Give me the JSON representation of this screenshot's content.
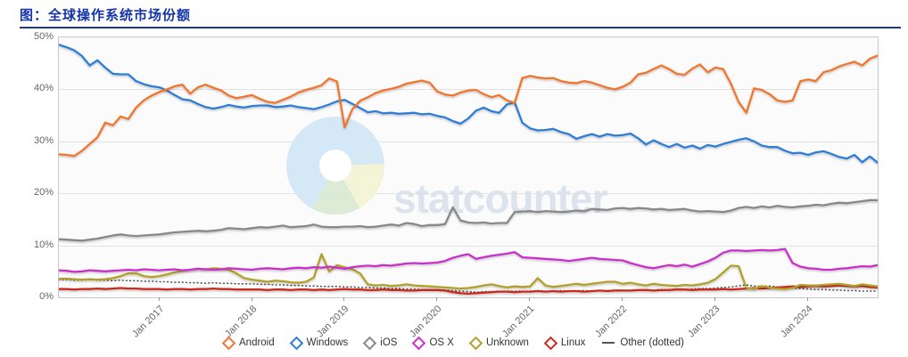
{
  "title": "图：全球操作系统市场份额",
  "watermark": "statcounter",
  "chart_data": {
    "type": "line",
    "title": "",
    "xlabel": "",
    "ylabel": "",
    "ylim": [
      0,
      50
    ],
    "grid": "horizontal",
    "legend_position": "bottom",
    "y_tick_labels": [
      "50%",
      "40%",
      "30%",
      "20%",
      "10%",
      "0%"
    ],
    "x_tick_labels": [
      "Jan 2017",
      "Jan 2018",
      "Jan 2019",
      "Jan 2020",
      "Jan 2021",
      "Jan 2022",
      "Jan 2023",
      "Jan 2024"
    ],
    "x_tick_indices": [
      13,
      25,
      37,
      49,
      61,
      73,
      85,
      97
    ],
    "x_start": "Dec 2015",
    "x_end": "Oct 2024",
    "x_unit": "month",
    "series": [
      {
        "name": "Other (dotted)",
        "color": "#555555",
        "style": "dotted",
        "marker": "dash",
        "values": [
          3.4,
          3.4,
          3.3,
          3.3,
          3.4,
          3.3,
          3.3,
          3.2,
          3.3,
          3.2,
          3.2,
          3.1,
          3.1,
          3.0,
          3.0,
          2.9,
          2.9,
          2.8,
          2.8,
          2.7,
          2.8,
          2.7,
          2.7,
          2.6,
          2.6,
          2.6,
          2.5,
          2.5,
          2.4,
          2.4,
          2.3,
          2.3,
          2.2,
          2.2,
          2.1,
          2.1,
          2.1,
          2.0,
          2.0,
          1.9,
          1.9,
          1.8,
          1.8,
          1.7,
          1.7,
          1.6,
          1.6,
          1.5,
          1.5,
          1.4,
          1.4,
          1.3,
          1.2,
          1.1,
          1.0,
          1.1,
          1.1,
          1.2,
          1.2,
          1.2,
          1.2,
          1.2,
          1.3,
          1.2,
          1.2,
          1.3,
          1.2,
          1.3,
          1.3,
          1.2,
          1.3,
          1.3,
          1.4,
          1.4,
          1.3,
          1.4,
          1.5,
          1.4,
          1.5,
          1.5,
          1.6,
          1.5,
          1.6,
          1.7,
          1.7,
          1.8,
          1.9,
          2.0,
          2.2,
          2.4,
          2.2,
          2.1,
          2.2,
          2.0,
          1.9,
          1.8,
          1.7,
          1.6,
          1.5,
          1.5,
          1.4,
          1.4,
          1.3,
          1.3,
          1.2,
          1.2,
          1.2
        ]
      },
      {
        "name": "Linux",
        "color": "#cc2b1e",
        "style": "solid",
        "marker": "diamond",
        "values": [
          1.6,
          1.6,
          1.5,
          1.6,
          1.6,
          1.7,
          1.6,
          1.7,
          1.8,
          1.7,
          1.7,
          1.6,
          1.6,
          1.6,
          1.5,
          1.6,
          1.6,
          1.5,
          1.6,
          1.6,
          1.7,
          1.6,
          1.6,
          1.5,
          1.5,
          1.5,
          1.5,
          1.4,
          1.5,
          1.5,
          1.4,
          1.5,
          1.5,
          1.4,
          1.5,
          1.4,
          1.5,
          1.6,
          1.5,
          1.5,
          1.4,
          1.4,
          1.5,
          1.4,
          1.4,
          1.3,
          1.3,
          1.4,
          1.4,
          1.4,
          1.3,
          1.0,
          0.8,
          0.7,
          0.8,
          0.9,
          1.0,
          1.1,
          1.1,
          1.0,
          1.1,
          1.1,
          1.2,
          1.1,
          1.2,
          1.1,
          1.2,
          1.2,
          1.1,
          1.2,
          1.3,
          1.2,
          1.3,
          1.3,
          1.3,
          1.4,
          1.4,
          1.3,
          1.4,
          1.4,
          1.5,
          1.5,
          1.4,
          1.5,
          1.5,
          1.5,
          1.6,
          1.5,
          1.6,
          1.7,
          1.8,
          1.7,
          1.8,
          1.9,
          2.0,
          2.1,
          2.0,
          2.1,
          2.2,
          2.1,
          2.2,
          2.3,
          2.2,
          2.1,
          2.2,
          2.0,
          1.9
        ]
      },
      {
        "name": "Unknown",
        "color": "#b3a02c",
        "style": "solid",
        "marker": "diamond",
        "values": [
          3.6,
          3.6,
          3.5,
          3.4,
          3.5,
          3.4,
          3.5,
          3.7,
          4.1,
          4.6,
          4.6,
          4.1,
          3.9,
          4.1,
          4.4,
          4.8,
          5.1,
          5.3,
          5.5,
          5.4,
          5.6,
          5.5,
          5.3,
          4.6,
          3.7,
          3.4,
          3.2,
          3.0,
          3.2,
          3.1,
          2.9,
          2.8,
          3.0,
          3.8,
          8.3,
          5.0,
          6.2,
          5.8,
          5.4,
          4.6,
          2.5,
          2.3,
          2.4,
          2.2,
          2.3,
          2.5,
          2.3,
          2.2,
          2.1,
          2.0,
          1.9,
          1.8,
          1.7,
          1.8,
          2.0,
          2.3,
          2.5,
          2.2,
          1.9,
          2.1,
          2.0,
          2.1,
          3.7,
          2.3,
          2.0,
          2.2,
          2.4,
          2.6,
          2.4,
          2.6,
          2.8,
          3.0,
          3.0,
          2.6,
          2.8,
          2.5,
          2.3,
          2.6,
          2.4,
          2.3,
          2.2,
          2.4,
          2.3,
          2.5,
          2.8,
          3.5,
          4.8,
          6.1,
          6.0,
          1.8,
          1.6,
          2.2,
          1.9,
          1.7,
          1.6,
          1.8,
          2.4,
          2.3,
          2.3,
          2.4,
          2.5,
          2.6,
          2.4,
          2.2,
          2.5,
          2.3,
          2.1
        ]
      },
      {
        "name": "OS X",
        "color": "#cc2fcc",
        "style": "solid",
        "marker": "diamond",
        "values": [
          5.2,
          5.1,
          4.9,
          5.0,
          5.2,
          5.1,
          5.0,
          5.1,
          5.2,
          5.3,
          5.2,
          5.4,
          5.3,
          5.2,
          5.3,
          5.4,
          5.2,
          5.3,
          5.5,
          5.4,
          5.3,
          5.4,
          5.6,
          5.5,
          5.4,
          5.3,
          5.5,
          5.6,
          5.5,
          5.4,
          5.6,
          5.7,
          5.6,
          5.8,
          5.7,
          5.9,
          5.7,
          5.5,
          5.8,
          6.0,
          6.1,
          6.0,
          6.2,
          6.1,
          6.3,
          6.5,
          6.6,
          6.5,
          6.6,
          6.7,
          7.0,
          7.6,
          8.0,
          8.3,
          7.4,
          7.7,
          8.0,
          8.2,
          8.4,
          8.7,
          7.7,
          7.6,
          7.5,
          7.4,
          7.3,
          7.2,
          7.0,
          7.2,
          7.4,
          7.6,
          7.4,
          7.3,
          7.2,
          7.1,
          6.6,
          6.2,
          5.8,
          5.6,
          5.9,
          6.2,
          6.0,
          6.3,
          5.9,
          6.4,
          6.9,
          7.6,
          8.6,
          9.0,
          9.0,
          8.9,
          9.0,
          9.1,
          9.0,
          9.1,
          9.3,
          6.6,
          5.9,
          5.6,
          5.5,
          5.3,
          5.3,
          5.5,
          5.6,
          5.8,
          6.0,
          5.9,
          6.2
        ]
      },
      {
        "name": "iOS",
        "color": "#888888",
        "style": "solid",
        "marker": "diamond",
        "values": [
          11.2,
          11.1,
          11.0,
          10.9,
          11.1,
          11.3,
          11.6,
          11.9,
          12.1,
          11.9,
          11.8,
          11.9,
          12.0,
          12.1,
          12.3,
          12.5,
          12.6,
          12.7,
          12.8,
          12.7,
          12.8,
          13.0,
          13.3,
          13.2,
          13.1,
          13.3,
          13.5,
          13.4,
          13.6,
          13.8,
          13.5,
          13.6,
          13.7,
          14.0,
          13.6,
          13.5,
          13.5,
          13.6,
          13.6,
          13.7,
          13.5,
          13.6,
          13.8,
          14.0,
          13.8,
          14.3,
          14.1,
          13.7,
          13.9,
          13.9,
          14.1,
          17.3,
          14.8,
          14.4,
          14.3,
          14.4,
          14.2,
          14.3,
          14.3,
          16.4,
          16.5,
          16.6,
          16.4,
          16.6,
          16.5,
          16.4,
          16.5,
          16.7,
          16.6,
          17.0,
          16.9,
          16.8,
          17.1,
          17.2,
          17.0,
          17.2,
          17.1,
          16.9,
          17.0,
          16.8,
          16.9,
          17.0,
          16.7,
          16.5,
          16.6,
          16.5,
          16.4,
          16.7,
          17.2,
          17.4,
          17.2,
          17.5,
          17.3,
          17.6,
          17.4,
          17.3,
          17.5,
          17.6,
          17.8,
          17.7,
          18.0,
          18.2,
          18.1,
          18.3,
          18.5,
          18.7,
          18.7
        ]
      },
      {
        "name": "Windows",
        "color": "#2f7ed8",
        "style": "solid",
        "marker": "diamond",
        "values": [
          48.6,
          48.1,
          47.5,
          46.4,
          44.6,
          45.6,
          44.2,
          43.0,
          42.9,
          42.9,
          41.6,
          41.0,
          40.6,
          40.4,
          39.8,
          38.9,
          38.1,
          37.9,
          37.2,
          36.6,
          36.3,
          36.6,
          37.0,
          36.7,
          36.5,
          36.8,
          36.9,
          36.9,
          36.6,
          36.7,
          36.9,
          36.6,
          36.4,
          36.2,
          36.6,
          37.1,
          37.7,
          38.0,
          37.2,
          36.4,
          35.6,
          35.8,
          35.4,
          35.5,
          35.3,
          35.4,
          35.5,
          35.2,
          35.3,
          34.9,
          34.6,
          33.9,
          33.4,
          34.4,
          35.9,
          36.5,
          35.8,
          35.5,
          37.1,
          37.5,
          33.6,
          32.5,
          32.1,
          32.2,
          32.4,
          31.8,
          31.4,
          30.5,
          31.0,
          31.4,
          30.9,
          31.4,
          31.1,
          31.2,
          31.5,
          30.6,
          29.4,
          30.2,
          29.5,
          28.9,
          29.5,
          28.8,
          29.2,
          28.6,
          29.3,
          29.0,
          29.5,
          29.9,
          30.3,
          30.6,
          30.0,
          29.2,
          28.9,
          28.9,
          28.2,
          27.7,
          27.8,
          27.4,
          27.9,
          28.1,
          27.6,
          27.0,
          26.7,
          27.4,
          26.0,
          27.1,
          25.9
        ]
      },
      {
        "name": "Android",
        "color": "#f2742d",
        "style": "solid",
        "marker": "diamond",
        "values": [
          27.5,
          27.4,
          27.2,
          28.2,
          29.5,
          30.8,
          33.6,
          33.1,
          34.8,
          34.3,
          36.5,
          37.9,
          38.8,
          39.5,
          40.0,
          40.6,
          40.9,
          39.2,
          40.4,
          40.9,
          40.3,
          39.8,
          38.8,
          38.3,
          38.6,
          38.9,
          38.2,
          37.6,
          37.4,
          38.0,
          38.6,
          39.4,
          39.9,
          40.3,
          40.8,
          42.1,
          41.5,
          32.7,
          36.2,
          37.8,
          38.5,
          39.3,
          39.8,
          40.1,
          40.5,
          41.1,
          41.4,
          41.7,
          41.3,
          39.6,
          39.0,
          38.8,
          39.4,
          39.8,
          39.9,
          39.1,
          38.5,
          38.9,
          37.9,
          37.4,
          42.2,
          42.6,
          42.3,
          42.1,
          42.2,
          41.6,
          41.3,
          41.2,
          41.6,
          41.3,
          40.8,
          40.3,
          40.0,
          40.5,
          41.3,
          42.9,
          43.2,
          43.9,
          44.6,
          43.9,
          43.0,
          42.8,
          44.0,
          44.8,
          43.3,
          44.2,
          43.9,
          41.1,
          37.6,
          35.5,
          40.2,
          39.9,
          39.1,
          37.9,
          37.6,
          37.9,
          41.6,
          41.9,
          41.6,
          43.3,
          43.7,
          44.4,
          44.9,
          45.3,
          44.6,
          45.9,
          46.5
        ]
      }
    ],
    "legend_order": [
      "Android",
      "Windows",
      "iOS",
      "OS X",
      "Unknown",
      "Linux",
      "Other (dotted)"
    ]
  }
}
